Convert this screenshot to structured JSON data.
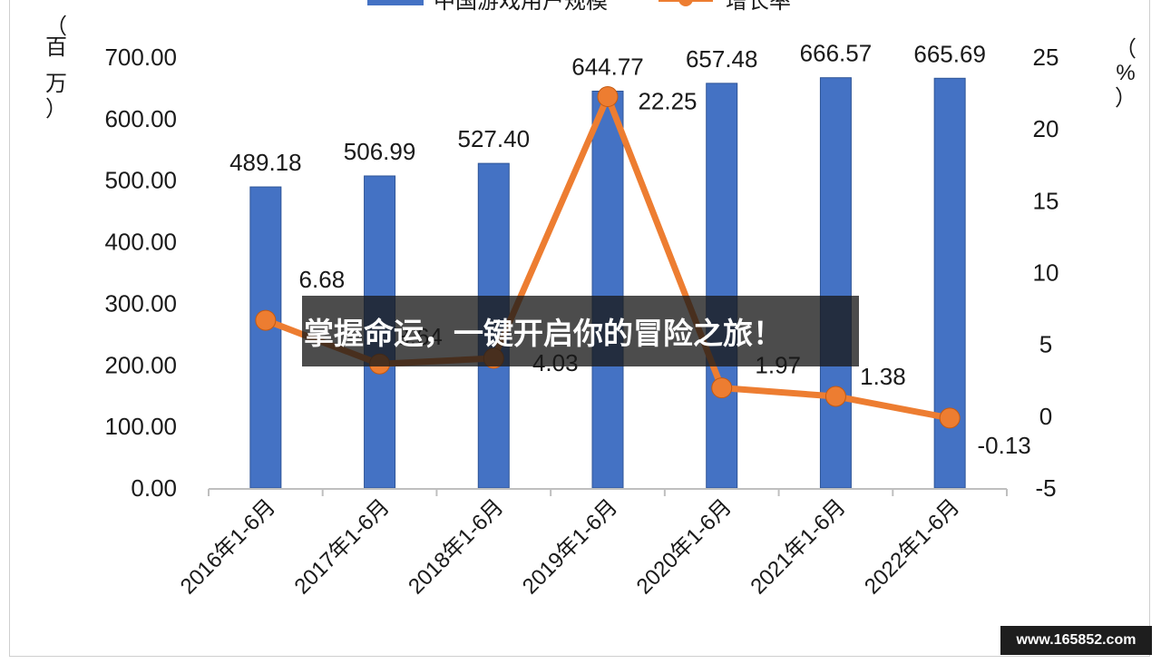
{
  "chart_data": {
    "type": "bar+line",
    "categories": [
      "2016年1-6月",
      "2017年1-6月",
      "2018年1-6月",
      "2019年1-6月",
      "2020年1-6月",
      "2021年1-6月",
      "2022年1-6月"
    ],
    "series": [
      {
        "name": "中国游戏用户规模",
        "type": "bar",
        "axis": "left",
        "color": "#4472C4",
        "values": [
          489.18,
          506.99,
          527.4,
          644.77,
          657.48,
          666.57,
          665.69
        ],
        "labels": [
          "489.18",
          "506.99",
          "527.40",
          "644.77",
          "657.48",
          "666.57",
          "665.69"
        ]
      },
      {
        "name": "增长率",
        "type": "line",
        "axis": "right",
        "color": "#ED7D31",
        "values": [
          6.68,
          3.64,
          4.03,
          22.25,
          1.97,
          1.38,
          -0.13
        ],
        "labels": [
          "6.68",
          "3.64",
          "4.03",
          "22.25",
          "1.97",
          "1.38",
          "-0.13"
        ]
      }
    ],
    "y_left": {
      "label_chars": [
        "（",
        "百",
        "万",
        "）"
      ],
      "range": [
        0,
        700
      ],
      "ticks": [
        "0.00",
        "100.00",
        "200.00",
        "300.00",
        "400.00",
        "500.00",
        "600.00",
        "700.00"
      ]
    },
    "y_right": {
      "label_chars": [
        "（",
        "%",
        "）"
      ],
      "range": [
        -5,
        25
      ],
      "ticks": [
        "-5",
        "0",
        "5",
        "10",
        "15",
        "20",
        "25"
      ]
    },
    "legend_position": "top",
    "grid": false
  },
  "overlay": {
    "banner_text": "掌握命运，一键开启你的冒险之旅！",
    "watermark_text": "www.165852.com"
  }
}
